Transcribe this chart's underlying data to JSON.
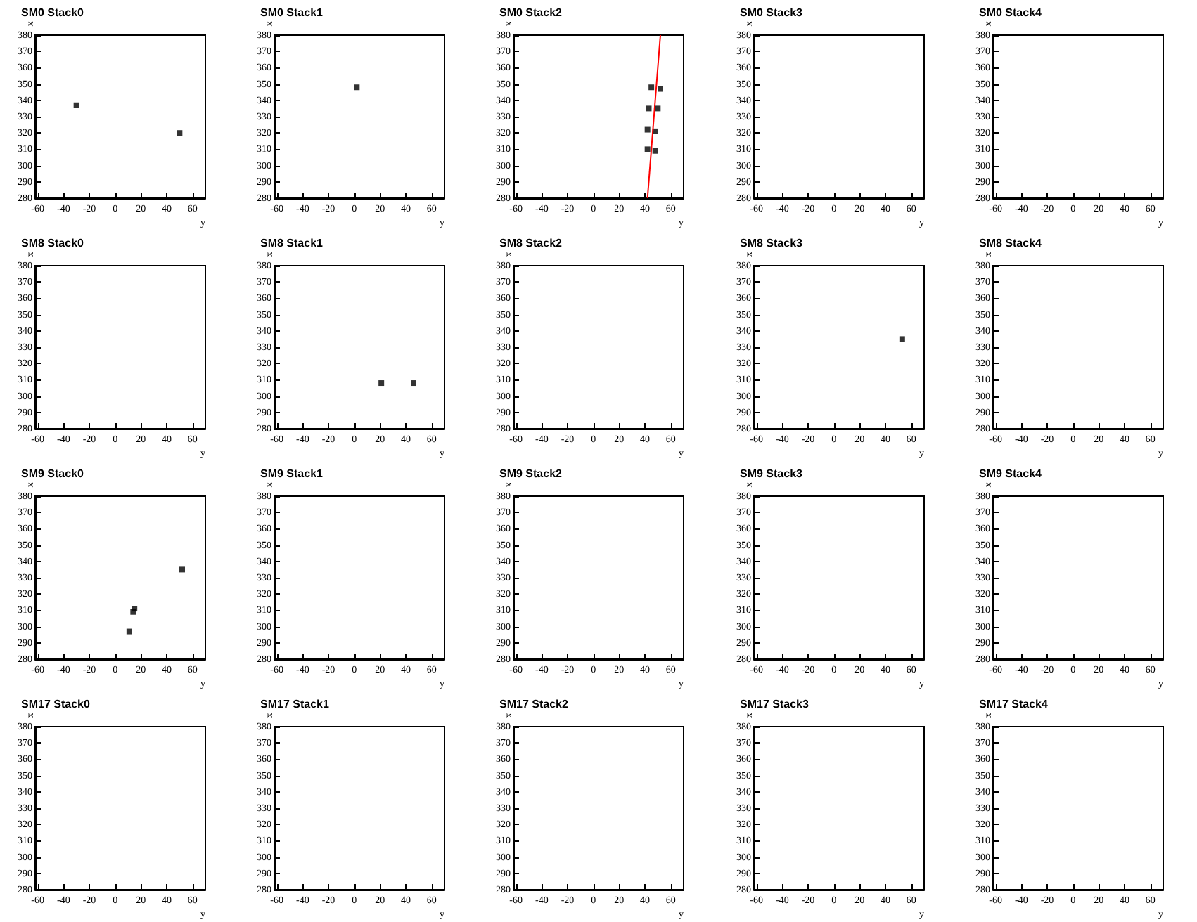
{
  "chart_data": [
    {
      "type": "scatter",
      "title": "SM0 Stack0",
      "xlabel": "y",
      "ylabel": "x",
      "xlim": [
        -62,
        70
      ],
      "ylim": [
        280,
        380
      ],
      "xticks": [
        -60,
        -40,
        -20,
        0,
        20,
        40,
        60
      ],
      "yticks": [
        280,
        290,
        300,
        310,
        320,
        330,
        340,
        350,
        360,
        370,
        380
      ],
      "marker": "square",
      "series": [
        {
          "color": "#000000",
          "x": [
            -30,
            50
          ],
          "values": [
            337,
            320
          ]
        }
      ]
    },
    {
      "type": "scatter",
      "title": "SM0 Stack1",
      "xlabel": "y",
      "ylabel": "x",
      "xlim": [
        -62,
        70
      ],
      "ylim": [
        280,
        380
      ],
      "xticks": [
        -60,
        -40,
        -20,
        0,
        20,
        40,
        60
      ],
      "yticks": [
        280,
        290,
        300,
        310,
        320,
        330,
        340,
        350,
        360,
        370,
        380
      ],
      "marker": "square",
      "series": [
        {
          "color": "#000000",
          "x": [
            2
          ],
          "values": [
            348
          ]
        }
      ]
    },
    {
      "type": "scatter",
      "title": "SM0 Stack2",
      "xlabel": "y",
      "ylabel": "x",
      "xlim": [
        -62,
        70
      ],
      "ylim": [
        280,
        380
      ],
      "xticks": [
        -60,
        -40,
        -20,
        0,
        20,
        40,
        60
      ],
      "yticks": [
        280,
        290,
        300,
        310,
        320,
        330,
        340,
        350,
        360,
        370,
        380
      ],
      "marker": "square",
      "series": [
        {
          "color": "#000000",
          "x": [
            45,
            52,
            43,
            50,
            42,
            48,
            42,
            48
          ],
          "values": [
            348,
            347,
            335,
            335,
            322,
            321,
            310,
            309
          ]
        },
        {
          "type": "line",
          "marker": "none",
          "color": "#ff0000",
          "x": [
            42,
            52
          ],
          "values": [
            280,
            380
          ]
        }
      ]
    },
    {
      "type": "scatter",
      "title": "SM0 Stack3",
      "xlabel": "y",
      "ylabel": "x",
      "xlim": [
        -62,
        70
      ],
      "ylim": [
        280,
        380
      ],
      "xticks": [
        -60,
        -40,
        -20,
        0,
        20,
        40,
        60
      ],
      "yticks": [
        280,
        290,
        300,
        310,
        320,
        330,
        340,
        350,
        360,
        370,
        380
      ]
    },
    {
      "type": "scatter",
      "title": "SM0 Stack4",
      "xlabel": "y",
      "ylabel": "x",
      "xlim": [
        -62,
        70
      ],
      "ylim": [
        280,
        380
      ],
      "xticks": [
        -60,
        -40,
        -20,
        0,
        20,
        40,
        60
      ],
      "yticks": [
        280,
        290,
        300,
        310,
        320,
        330,
        340,
        350,
        360,
        370,
        380
      ]
    },
    {
      "type": "scatter",
      "title": "SM8 Stack0",
      "xlabel": "y",
      "ylabel": "x",
      "xlim": [
        -62,
        70
      ],
      "ylim": [
        280,
        380
      ],
      "xticks": [
        -60,
        -40,
        -20,
        0,
        20,
        40,
        60
      ],
      "yticks": [
        280,
        290,
        300,
        310,
        320,
        330,
        340,
        350,
        360,
        370,
        380
      ]
    },
    {
      "type": "scatter",
      "title": "SM8 Stack1",
      "xlabel": "y",
      "ylabel": "x",
      "xlim": [
        -62,
        70
      ],
      "ylim": [
        280,
        380
      ],
      "xticks": [
        -60,
        -40,
        -20,
        0,
        20,
        40,
        60
      ],
      "yticks": [
        280,
        290,
        300,
        310,
        320,
        330,
        340,
        350,
        360,
        370,
        380
      ],
      "marker": "square",
      "series": [
        {
          "color": "#000000",
          "x": [
            21,
            46
          ],
          "values": [
            308,
            308
          ]
        }
      ]
    },
    {
      "type": "scatter",
      "title": "SM8 Stack2",
      "xlabel": "y",
      "ylabel": "x",
      "xlim": [
        -62,
        70
      ],
      "ylim": [
        280,
        380
      ],
      "xticks": [
        -60,
        -40,
        -20,
        0,
        20,
        40,
        60
      ],
      "yticks": [
        280,
        290,
        300,
        310,
        320,
        330,
        340,
        350,
        360,
        370,
        380
      ]
    },
    {
      "type": "scatter",
      "title": "SM8 Stack3",
      "xlabel": "y",
      "ylabel": "x",
      "xlim": [
        -62,
        70
      ],
      "ylim": [
        280,
        380
      ],
      "xticks": [
        -60,
        -40,
        -20,
        0,
        20,
        40,
        60
      ],
      "yticks": [
        280,
        290,
        300,
        310,
        320,
        330,
        340,
        350,
        360,
        370,
        380
      ],
      "marker": "square",
      "series": [
        {
          "color": "#000000",
          "x": [
            53
          ],
          "values": [
            335
          ]
        }
      ]
    },
    {
      "type": "scatter",
      "title": "SM8 Stack4",
      "xlabel": "y",
      "ylabel": "x",
      "xlim": [
        -62,
        70
      ],
      "ylim": [
        280,
        380
      ],
      "xticks": [
        -60,
        -40,
        -20,
        0,
        20,
        40,
        60
      ],
      "yticks": [
        280,
        290,
        300,
        310,
        320,
        330,
        340,
        350,
        360,
        370,
        380
      ]
    },
    {
      "type": "scatter",
      "title": "SM9 Stack0",
      "xlabel": "y",
      "ylabel": "x",
      "xlim": [
        -62,
        70
      ],
      "ylim": [
        280,
        380
      ],
      "xticks": [
        -60,
        -40,
        -20,
        0,
        20,
        40,
        60
      ],
      "yticks": [
        280,
        290,
        300,
        310,
        320,
        330,
        340,
        350,
        360,
        370,
        380
      ],
      "marker": "square",
      "series": [
        {
          "color": "#000000",
          "x": [
            11,
            14,
            15,
            52
          ],
          "values": [
            297,
            309,
            311,
            335
          ]
        }
      ]
    },
    {
      "type": "scatter",
      "title": "SM9 Stack1",
      "xlabel": "y",
      "ylabel": "x",
      "xlim": [
        -62,
        70
      ],
      "ylim": [
        280,
        380
      ],
      "xticks": [
        -60,
        -40,
        -20,
        0,
        20,
        40,
        60
      ],
      "yticks": [
        280,
        290,
        300,
        310,
        320,
        330,
        340,
        350,
        360,
        370,
        380
      ]
    },
    {
      "type": "scatter",
      "title": "SM9 Stack2",
      "xlabel": "y",
      "ylabel": "x",
      "xlim": [
        -62,
        70
      ],
      "ylim": [
        280,
        380
      ],
      "xticks": [
        -60,
        -40,
        -20,
        0,
        20,
        40,
        60
      ],
      "yticks": [
        280,
        290,
        300,
        310,
        320,
        330,
        340,
        350,
        360,
        370,
        380
      ]
    },
    {
      "type": "scatter",
      "title": "SM9 Stack3",
      "xlabel": "y",
      "ylabel": "x",
      "xlim": [
        -62,
        70
      ],
      "ylim": [
        280,
        380
      ],
      "xticks": [
        -60,
        -40,
        -20,
        0,
        20,
        40,
        60
      ],
      "yticks": [
        280,
        290,
        300,
        310,
        320,
        330,
        340,
        350,
        360,
        370,
        380
      ]
    },
    {
      "type": "scatter",
      "title": "SM9 Stack4",
      "xlabel": "y",
      "ylabel": "x",
      "xlim": [
        -62,
        70
      ],
      "ylim": [
        280,
        380
      ],
      "xticks": [
        -60,
        -40,
        -20,
        0,
        20,
        40,
        60
      ],
      "yticks": [
        280,
        290,
        300,
        310,
        320,
        330,
        340,
        350,
        360,
        370,
        380
      ]
    },
    {
      "type": "scatter",
      "title": "SM17 Stack0",
      "xlabel": "y",
      "ylabel": "x",
      "xlim": [
        -62,
        70
      ],
      "ylim": [
        280,
        380
      ],
      "xticks": [
        -60,
        -40,
        -20,
        0,
        20,
        40,
        60
      ],
      "yticks": [
        280,
        290,
        300,
        310,
        320,
        330,
        340,
        350,
        360,
        370,
        380
      ]
    },
    {
      "type": "scatter",
      "title": "SM17 Stack1",
      "xlabel": "y",
      "ylabel": "x",
      "xlim": [
        -62,
        70
      ],
      "ylim": [
        280,
        380
      ],
      "xticks": [
        -60,
        -40,
        -20,
        0,
        20,
        40,
        60
      ],
      "yticks": [
        280,
        290,
        300,
        310,
        320,
        330,
        340,
        350,
        360,
        370,
        380
      ]
    },
    {
      "type": "scatter",
      "title": "SM17 Stack2",
      "xlabel": "y",
      "ylabel": "x",
      "xlim": [
        -62,
        70
      ],
      "ylim": [
        280,
        380
      ],
      "xticks": [
        -60,
        -40,
        -20,
        0,
        20,
        40,
        60
      ],
      "yticks": [
        280,
        290,
        300,
        310,
        320,
        330,
        340,
        350,
        360,
        370,
        380
      ]
    },
    {
      "type": "scatter",
      "title": "SM17 Stack3",
      "xlabel": "y",
      "ylabel": "x",
      "xlim": [
        -62,
        70
      ],
      "ylim": [
        280,
        380
      ],
      "xticks": [
        -60,
        -40,
        -20,
        0,
        20,
        40,
        60
      ],
      "yticks": [
        280,
        290,
        300,
        310,
        320,
        330,
        340,
        350,
        360,
        370,
        380
      ]
    },
    {
      "type": "scatter",
      "title": "SM17 Stack4",
      "xlabel": "y",
      "ylabel": "x",
      "xlim": [
        -62,
        70
      ],
      "ylim": [
        280,
        380
      ],
      "xticks": [
        -60,
        -40,
        -20,
        0,
        20,
        40,
        60
      ],
      "yticks": [
        280,
        290,
        300,
        310,
        320,
        330,
        340,
        350,
        360,
        370,
        380
      ]
    }
  ]
}
